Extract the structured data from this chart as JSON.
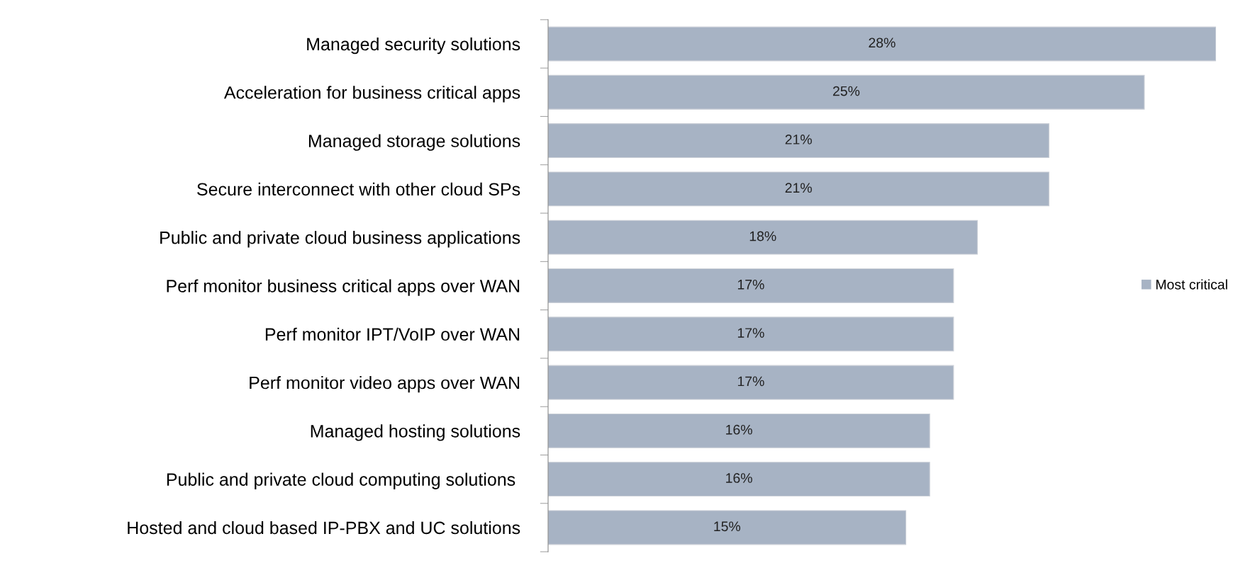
{
  "chart_data": {
    "type": "bar",
    "orientation": "horizontal",
    "categories": [
      "Managed security solutions",
      "Acceleration for business critical apps",
      "Managed storage solutions",
      "Secure interconnect with other cloud SPs",
      "Public and private cloud business applications",
      "Perf monitor business critical apps over WAN",
      "Perf monitor IPT/VoIP over WAN",
      "Perf monitor video apps over WAN",
      "Managed hosting solutions",
      "Public and private cloud computing solutions ",
      "Hosted and cloud based IP-PBX and UC solutions"
    ],
    "series": [
      {
        "name": "Most critical",
        "color": "#a7b3c4",
        "values": [
          28,
          25,
          21,
          21,
          18,
          17,
          17,
          17,
          16,
          16,
          15
        ],
        "value_labels": [
          "28%",
          "25%",
          "21%",
          "21%",
          "18%",
          "17%",
          "17%",
          "17%",
          "16%",
          "16%",
          "15%"
        ]
      }
    ],
    "legend": "right",
    "grid": false
  }
}
